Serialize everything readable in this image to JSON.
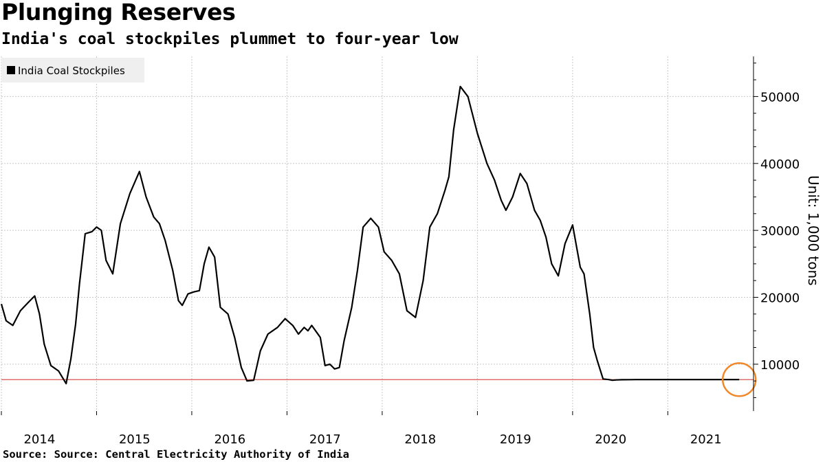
{
  "header": {
    "title": "Plunging Reserves",
    "subtitle": "India's coal stockpiles plummet to four-year low"
  },
  "footer": {
    "source": "Source: Source: Central Electricity Authority of India"
  },
  "colors": {
    "series": "#000000",
    "reference_line": "#d9534f",
    "highlight_circle": "#f0882a",
    "grid": "#c8c8c8",
    "legend_bg": "#efefef"
  },
  "chart_data": {
    "type": "line",
    "title": "Plunging Reserves",
    "subtitle": "India's coal stockpiles plummet to four-year low",
    "ylabel": "Unit: 1,000 tons",
    "xlabel": "",
    "x_ticks": [
      "2014",
      "2015",
      "2016",
      "2017",
      "2018",
      "2019",
      "2020",
      "2021"
    ],
    "y_ticks": [
      10000,
      20000,
      30000,
      40000,
      50000
    ],
    "ylim": [
      3000,
      56000
    ],
    "xlim": [
      2013.6,
      2021.5
    ],
    "grid": true,
    "y_axis_side": "right",
    "legend": {
      "position": "top-left",
      "entries": [
        "India Coal Stockpiles"
      ]
    },
    "reference_line": {
      "y": 7700,
      "label": ""
    },
    "highlight": {
      "shape": "circle",
      "x": 2021.35,
      "y": 7700
    },
    "series": [
      {
        "name": "India Coal Stockpiles",
        "x": [
          2013.6,
          2013.65,
          2013.72,
          2013.8,
          2013.88,
          2013.95,
          2014.0,
          2014.05,
          2014.12,
          2014.2,
          2014.28,
          2014.33,
          2014.38,
          2014.42,
          2014.48,
          2014.55,
          2014.6,
          2014.65,
          2014.7,
          2014.77,
          2014.85,
          2014.95,
          2015.05,
          2015.12,
          2015.2,
          2015.26,
          2015.32,
          2015.4,
          2015.46,
          2015.5,
          2015.56,
          2015.62,
          2015.68,
          2015.73,
          2015.78,
          2015.84,
          2015.9,
          2015.98,
          2016.05,
          2016.12,
          2016.18,
          2016.25,
          2016.32,
          2016.4,
          2016.5,
          2016.58,
          2016.66,
          2016.72,
          2016.78,
          2016.82,
          2016.86,
          2016.9,
          2016.95,
          2017.0,
          2017.05,
          2017.1,
          2017.15,
          2017.2,
          2017.28,
          2017.34,
          2017.4,
          2017.48,
          2017.56,
          2017.62,
          2017.7,
          2017.78,
          2017.86,
          2017.95,
          2018.03,
          2018.1,
          2018.18,
          2018.26,
          2018.3,
          2018.35,
          2018.42,
          2018.5,
          2018.6,
          2018.7,
          2018.78,
          2018.85,
          2018.9,
          2018.97,
          2019.05,
          2019.12,
          2019.2,
          2019.26,
          2019.32,
          2019.38,
          2019.45,
          2019.52,
          2019.6,
          2019.68,
          2019.72,
          2019.78,
          2019.82,
          2019.86,
          2019.92,
          2019.98,
          2020.02,
          2020.06,
          2020.12,
          2020.2,
          2020.26,
          2020.32,
          2020.38,
          2020.44,
          2020.5,
          2020.56,
          2020.62,
          2020.68,
          2020.74,
          2020.8,
          2020.86,
          2020.9,
          2020.95,
          2021.0,
          2021.05,
          2021.1,
          2021.15,
          2021.2,
          2021.25,
          2021.3,
          2021.35
        ],
        "values": [
          19000,
          16500,
          15800,
          18000,
          19200,
          20200,
          17500,
          13000,
          9800,
          9000,
          7100,
          10800,
          16000,
          22000,
          29500,
          29800,
          30500,
          30000,
          25500,
          23500,
          31000,
          35500,
          38800,
          35000,
          32000,
          31000,
          28500,
          24000,
          19500,
          18800,
          20500,
          20800,
          21000,
          25000,
          27500,
          26000,
          18500,
          17500,
          14000,
          9500,
          7500,
          7600,
          12000,
          14500,
          15500,
          16800,
          15800,
          14500,
          15500,
          15000,
          15800,
          15000,
          14000,
          9800,
          10000,
          9300,
          9500,
          13500,
          18500,
          24000,
          30500,
          31800,
          30500,
          26800,
          25500,
          23500,
          18000,
          17000,
          22500,
          30500,
          32500,
          36000,
          38000,
          45000,
          51500,
          50000,
          44500,
          40000,
          37500,
          34500,
          33000,
          35000,
          38500,
          37000,
          33000,
          31500,
          29000,
          25000,
          23200,
          28000,
          30800,
          24500,
          23500,
          17500,
          12500,
          10500,
          7800,
          7700,
          7600,
          7650,
          7680,
          7690,
          7700,
          7700,
          7700,
          7700,
          7700,
          7700,
          7700,
          7700,
          7700,
          7700,
          7700,
          7700,
          7700,
          7700,
          7700,
          7700,
          7700,
          7700,
          7700,
          7700,
          7700
        ]
      }
    ]
  }
}
